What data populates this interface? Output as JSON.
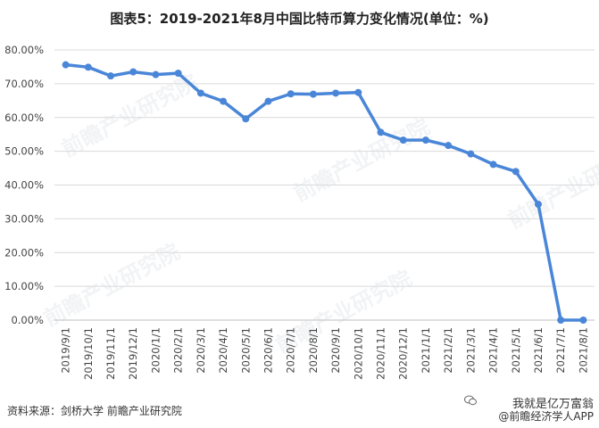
{
  "title": "图表5：2019-2021年8月中国比特币算力变化情况(单位：%)",
  "source": "资料来源：剑桥大学  前瞻产业研究院",
  "watermark": "前瞻产业研究院",
  "brand": {
    "line1": "我就是亿万富翁",
    "line2": "@前瞻经济学人APP"
  },
  "colors": {
    "line": "#4A86D8",
    "grid": "#d9d9d9",
    "axis": "#bfbfbf"
  },
  "chart_data": {
    "type": "line",
    "title": "图表5：2019-2021年8月中国比特币算力变化情况(单位：%)",
    "xlabel": "",
    "ylabel": "",
    "ylim": [
      0,
      80
    ],
    "yticks": [
      "0.00%",
      "10.00%",
      "20.00%",
      "30.00%",
      "40.00%",
      "50.00%",
      "60.00%",
      "70.00%",
      "80.00%"
    ],
    "grid": true,
    "categories": [
      "2019/9/1",
      "2019/10/1",
      "2019/11/1",
      "2019/12/1",
      "2020/1/1",
      "2020/2/1",
      "2020/3/1",
      "2020/4/1",
      "2020/5/1",
      "2020/6/1",
      "2020/7/1",
      "2020/8/1",
      "2020/9/1",
      "2020/10/1",
      "2020/11/1",
      "2020/12/1",
      "2021/1/1",
      "2021/2/1",
      "2021/3/1",
      "2021/4/1",
      "2021/5/1",
      "2021/6/1",
      "2021/7/1",
      "2021/8/1"
    ],
    "series": [
      {
        "name": "",
        "values": [
          75.6,
          74.9,
          72.3,
          73.5,
          72.7,
          73.1,
          67.2,
          64.8,
          59.6,
          64.8,
          67.0,
          66.9,
          67.2,
          67.4,
          55.6,
          53.3,
          53.3,
          51.7,
          49.2,
          46.1,
          44.0,
          34.3,
          0.0,
          0.0
        ]
      }
    ]
  }
}
